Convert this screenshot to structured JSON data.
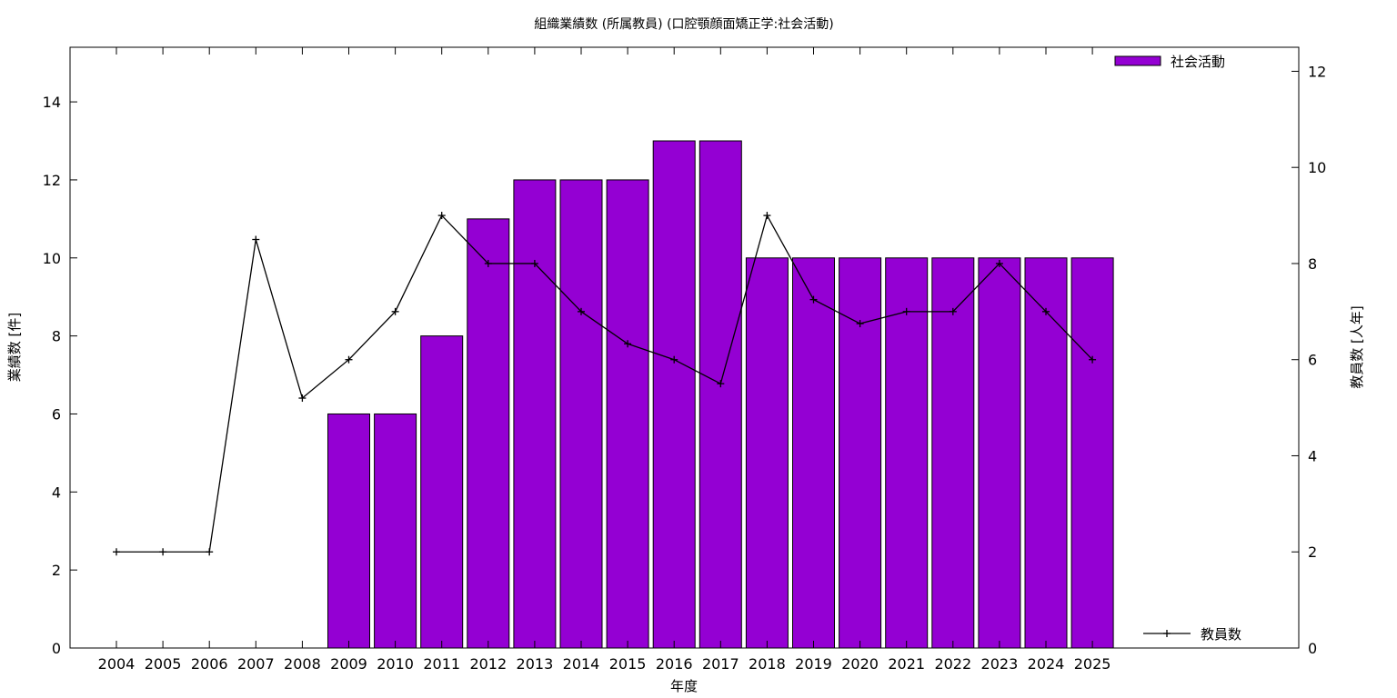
{
  "chart_data": {
    "type": "bar",
    "title": "組織業績数 (所属教員) (口腔顎顔面矯正学:社会活動)",
    "xlabel": "年度",
    "ylabel": "業績数 [件]",
    "y2label": "教員数 [人年]",
    "categories": [
      "2004",
      "2005",
      "2006",
      "2007",
      "2008",
      "2009",
      "2010",
      "2011",
      "2012",
      "2013",
      "2014",
      "2015",
      "2016",
      "2017",
      "2018",
      "2019",
      "2020",
      "2021",
      "2022",
      "2023",
      "2024",
      "2025"
    ],
    "series": [
      {
        "name": "社会活動",
        "type": "bar",
        "axis": "left",
        "color": "#9400d3",
        "values": [
          null,
          null,
          null,
          null,
          null,
          6,
          6,
          8,
          11,
          12,
          12,
          12,
          13,
          13,
          10,
          10,
          10,
          10,
          10,
          10,
          10,
          10
        ]
      },
      {
        "name": "教員数",
        "type": "line",
        "axis": "right",
        "color": "#000000",
        "marker": "plus",
        "values": [
          2,
          2,
          2,
          8.5,
          5.2,
          6,
          7,
          9,
          8,
          8,
          7,
          6.33,
          6,
          5.5,
          9,
          7.25,
          6.75,
          7,
          7,
          8,
          7,
          6
        ]
      }
    ],
    "ylim": [
      0,
      15.4
    ],
    "y2lim": [
      0,
      12.5
    ],
    "yticks": [
      0,
      2,
      4,
      6,
      8,
      10,
      12,
      14
    ],
    "y2ticks": [
      0,
      2,
      4,
      6,
      8,
      10,
      12
    ],
    "legend": {
      "position": "top-right / bottom-right",
      "bar_label": "社会活動",
      "line_label": "教員数"
    },
    "grid": false
  }
}
